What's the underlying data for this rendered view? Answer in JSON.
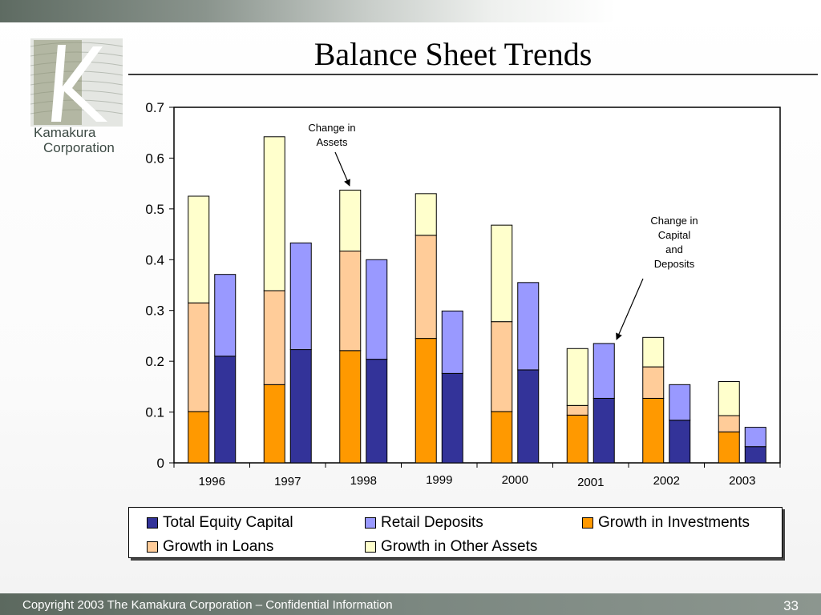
{
  "slide": {
    "title": "Balance Sheet Trends",
    "logo_line1": "Kamakura",
    "logo_line2": "Corporation",
    "footer_text": "Copyright 2003 The Kamakura Corporation – Confidential Information",
    "page_number": "33"
  },
  "annotations": {
    "assets": [
      "Change in",
      "Assets"
    ],
    "capital": [
      "Change in",
      "Capital",
      "and",
      "Deposits"
    ]
  },
  "chart_data": {
    "type": "bar",
    "stacked": true,
    "groups": [
      "1996",
      "1997",
      "1998",
      "1999",
      "2000",
      "2001",
      "2002",
      "2003"
    ],
    "ylim": [
      0,
      0.7
    ],
    "yticks": [
      "0",
      "0.1",
      "0.2",
      "0.3",
      "0.4",
      "0.5",
      "0.6",
      "0.7"
    ],
    "assets_bars": {
      "Growth in Investments": [
        0.101,
        0.154,
        0.221,
        0.245,
        0.101,
        0.094,
        0.127,
        0.061
      ],
      "Growth in Loans": [
        0.214,
        0.185,
        0.196,
        0.203,
        0.177,
        0.019,
        0.062,
        0.032
      ],
      "Growth in Other Assets": [
        0.21,
        0.303,
        0.12,
        0.082,
        0.19,
        0.112,
        0.058,
        0.067
      ]
    },
    "capital_bars": {
      "Total Equity Capital": [
        0.21,
        0.223,
        0.204,
        0.176,
        0.183,
        0.127,
        0.084,
        0.032
      ],
      "Retail Deposits": [
        0.161,
        0.21,
        0.196,
        0.123,
        0.172,
        0.108,
        0.07,
        0.038
      ]
    },
    "legend": [
      {
        "name": "Total Equity Capital",
        "color": "#333399"
      },
      {
        "name": "Retail Deposits",
        "color": "#9999ff"
      },
      {
        "name": "Growth in Investments",
        "color": "#ff9900"
      },
      {
        "name": "Growth in Loans",
        "color": "#ffcc99"
      },
      {
        "name": "Growth in Other Assets",
        "color": "#ffffcc"
      }
    ],
    "legend_position": "bottom",
    "grid": false
  }
}
